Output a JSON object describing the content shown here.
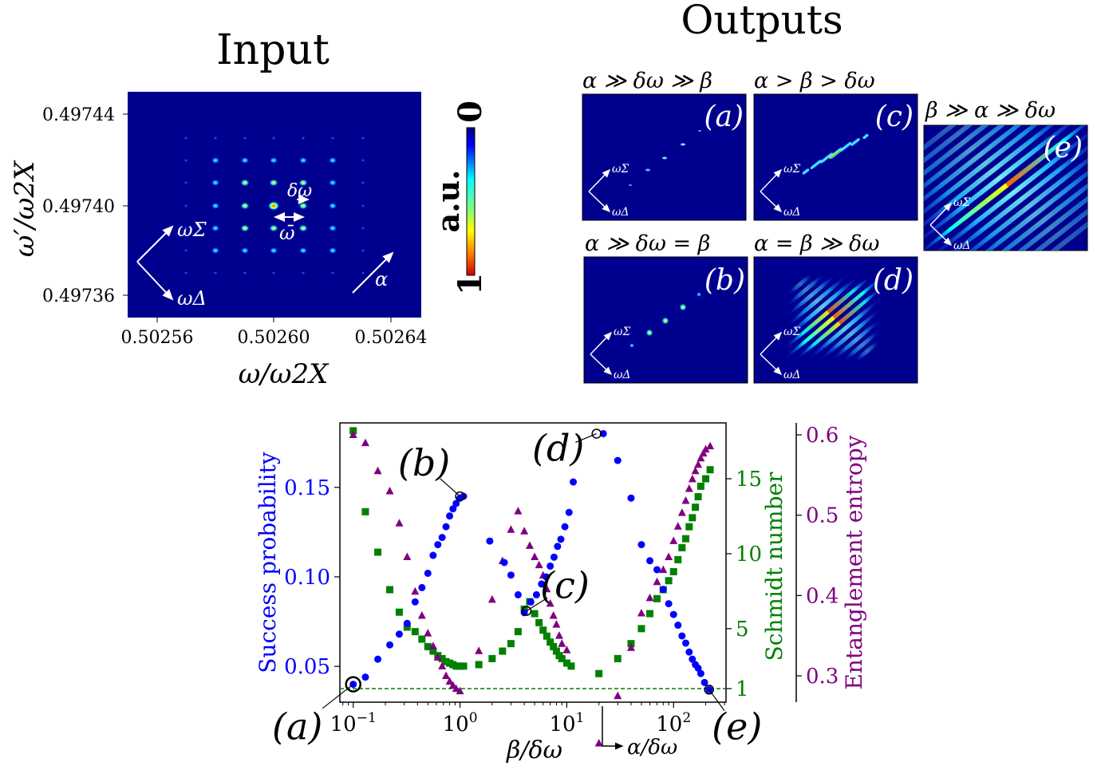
{
  "headings": {
    "input": "Input",
    "outputs": "Outputs"
  },
  "input_panel": {
    "ylabel": "ω′/ω2X",
    "xlabel": "ω/ω2X",
    "yticks": [
      "0.49744",
      "0.49740",
      "0.49736"
    ],
    "xticks": [
      "0.50256",
      "0.50260",
      "0.50264"
    ],
    "annotations": {
      "delta_omega": "δω",
      "omega_bar": "ω̄",
      "omega_sigma": "ωΣ",
      "omega_delta": "ωΔ",
      "alpha": "α"
    }
  },
  "colorbar": {
    "label": "a.u.",
    "top": "0",
    "bottom": "1"
  },
  "output_panels": [
    {
      "condition": "α ≫ δω ≫ β",
      "tag": "(a)"
    },
    {
      "condition": "α ≫ δω = β",
      "tag": "(b)"
    },
    {
      "condition": "α > β > δω",
      "tag": "(c)"
    },
    {
      "condition": "α = β ≫ δω",
      "tag": "(d)"
    },
    {
      "condition": "β ≫ α ≫ δω",
      "tag": "(e)"
    }
  ],
  "axis_labels": {
    "omega_sigma": "ωΣ",
    "omega_delta": "ωΔ"
  },
  "chart_data": {
    "type": "scatter",
    "xscale": "log",
    "xlabel": "β/δω",
    "xlabel2": "α/δω",
    "xticks": [
      "10−1",
      "100",
      "101",
      "102"
    ],
    "left_axis": {
      "label": "Success probability",
      "color": "#0000ff",
      "ticks": [
        "0.05",
        "0.10",
        "0.15"
      ],
      "ylim": [
        0.03,
        0.186
      ]
    },
    "right_axis1": {
      "label": "Schmidt number",
      "color": "#008000",
      "ticks": [
        "1",
        "5",
        "10",
        "15"
      ]
    },
    "right_axis2": {
      "label": "Entanglement entropy",
      "color": "#800080",
      "ticks": [
        "0.3",
        "0.4",
        "0.5",
        "0.6"
      ]
    },
    "reference_line": {
      "series": "Schmidt number",
      "value": 1
    },
    "series": [
      {
        "name": "Success probability",
        "marker": "circle",
        "color": "#0000ff",
        "x": [
          0.1,
          0.13,
          0.17,
          0.22,
          0.27,
          0.32,
          0.38,
          0.44,
          0.5,
          0.56,
          0.62,
          0.68,
          0.74,
          0.8,
          0.86,
          0.92,
          1.0,
          1.08,
          1.9,
          2.6,
          3.0,
          3.5,
          4.0,
          4.6,
          5.2,
          5.8,
          6.4,
          7.0,
          7.6,
          8.2,
          8.8,
          9.6,
          10.5,
          11.5,
          22,
          30,
          40,
          50,
          60,
          70,
          80,
          90,
          100,
          110,
          120,
          130,
          140,
          150,
          160,
          170,
          180,
          195,
          215
        ],
        "values": [
          0.04,
          0.044,
          0.054,
          0.062,
          0.068,
          0.074,
          0.086,
          0.094,
          0.102,
          0.112,
          0.118,
          0.122,
          0.128,
          0.134,
          0.138,
          0.141,
          0.144,
          0.145,
          0.12,
          0.108,
          0.101,
          0.09,
          0.08,
          0.086,
          0.09,
          0.096,
          0.1,
          0.106,
          0.111,
          0.117,
          0.121,
          0.128,
          0.136,
          0.153,
          0.18,
          0.165,
          0.144,
          0.118,
          0.109,
          0.104,
          0.093,
          0.085,
          0.079,
          0.073,
          0.067,
          0.063,
          0.058,
          0.054,
          0.051,
          0.049,
          0.046,
          0.041,
          0.037
        ]
      },
      {
        "name": "Schmidt number",
        "marker": "square",
        "color": "#008000",
        "x": [
          0.1,
          0.13,
          0.17,
          0.22,
          0.27,
          0.32,
          0.38,
          0.44,
          0.5,
          0.56,
          0.62,
          0.68,
          0.74,
          0.8,
          0.86,
          0.92,
          1.0,
          1.08,
          1.5,
          2.0,
          2.5,
          3.0,
          3.5,
          4.0,
          4.5,
          5.0,
          5.5,
          6.0,
          6.5,
          7.0,
          7.5,
          8.0,
          8.5,
          9.0,
          10.0,
          11.0,
          20,
          30,
          40,
          50,
          60,
          70,
          80,
          90,
          100,
          110,
          120,
          130,
          140,
          150,
          160,
          170,
          180,
          200,
          220
        ],
        "values": [
          18.2,
          12.8,
          10.1,
          7.6,
          6.1,
          5.1,
          4.8,
          4.3,
          3.8,
          3.5,
          3.2,
          3.0,
          2.8,
          2.7,
          2.6,
          2.5,
          2.5,
          2.5,
          2.6,
          3.0,
          3.5,
          4.0,
          4.8,
          6.3,
          6.8,
          6.0,
          5.4,
          4.9,
          4.5,
          4.1,
          3.8,
          3.5,
          3.2,
          3.0,
          2.7,
          2.5,
          2.0,
          3.0,
          4.0,
          5.0,
          6.0,
          7.0,
          7.6,
          8.2,
          8.8,
          9.6,
          10.4,
          11.0,
          11.8,
          12.4,
          13.1,
          13.8,
          14.5,
          15.0,
          15.6
        ]
      },
      {
        "name": "Entanglement entropy",
        "marker": "triangle",
        "color": "#800080",
        "x": [
          0.1,
          0.13,
          0.17,
          0.22,
          0.27,
          0.32,
          0.38,
          0.44,
          0.5,
          0.56,
          0.62,
          0.68,
          0.74,
          0.8,
          0.86,
          0.92,
          1.0,
          1.5,
          2.0,
          2.5,
          3.0,
          3.5,
          4.0,
          4.5,
          5.0,
          5.5,
          6.0,
          6.5,
          7.0,
          7.5,
          8.0,
          8.5,
          9.0,
          10.0,
          20,
          30,
          40,
          50,
          60,
          70,
          80,
          90,
          100,
          110,
          120,
          130,
          140,
          150,
          160,
          170,
          180,
          190,
          200,
          220
        ],
        "values": [
          0.6,
          0.59,
          0.555,
          0.53,
          0.49,
          0.448,
          0.405,
          0.375,
          0.353,
          0.337,
          0.323,
          0.312,
          0.3,
          0.293,
          0.288,
          0.284,
          0.281,
          0.331,
          0.395,
          0.443,
          0.482,
          0.505,
          0.48,
          0.462,
          0.448,
          0.438,
          0.425,
          0.408,
          0.39,
          0.375,
          0.364,
          0.35,
          0.34,
          0.332,
          0.216,
          0.275,
          0.335,
          0.378,
          0.397,
          0.417,
          0.432,
          0.448,
          0.468,
          0.486,
          0.503,
          0.518,
          0.533,
          0.545,
          0.555,
          0.563,
          0.571,
          0.577,
          0.582,
          0.586
        ]
      }
    ],
    "highlighted_points": [
      {
        "label": "(a)",
        "x": 0.1,
        "value": 0.04
      },
      {
        "label": "(b)",
        "x": 1.0,
        "value": 0.145
      },
      {
        "label": "(c)",
        "x": 4.2,
        "value": 0.081
      },
      {
        "label": "(d)",
        "x": 19,
        "value": 0.18
      },
      {
        "label": "(e)",
        "x": 215,
        "value": 0.037
      }
    ]
  }
}
